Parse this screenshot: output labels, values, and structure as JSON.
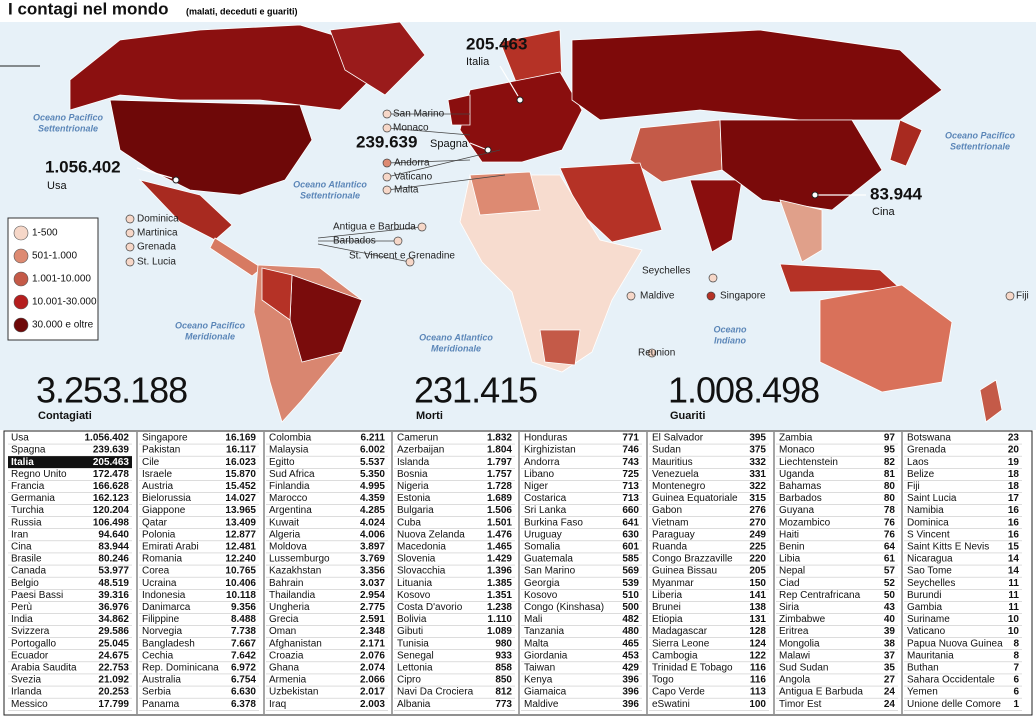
{
  "header": {
    "title": "I contagi nel mondo",
    "subtitle": "(malati, deceduti e guariti)"
  },
  "map": {
    "oceans": [
      [
        "Oceano Pacifico",
        "Settentrionale"
      ],
      [
        "Oceano Pacifico",
        "Settentrionale"
      ],
      [
        "Oceano Atlantico",
        "Settentrionale"
      ],
      [
        "Oceano Pacifico",
        "Meridionale"
      ],
      [
        "Oceano Atlantico",
        "Meridionale"
      ],
      [
        "Oceano",
        "Indiano"
      ]
    ],
    "callouts": [
      {
        "value": "1.056.402",
        "label": "Usa"
      },
      {
        "value": "239.639",
        "label": "Spagna"
      },
      {
        "value": "205.463",
        "label": "Italia"
      },
      {
        "value": "83.944",
        "label": "Cina"
      }
    ],
    "small_labels": [
      "San Marino",
      "Monaco",
      "Andorra",
      "Vaticano",
      "Malta",
      "Dominica",
      "Martinica",
      "Grenada",
      "St. Lucia",
      "Antigua e Barbuda",
      "Barbados",
      "St. Vincent e Grenadine",
      "Seychelles",
      "Maldive",
      "Singapore",
      "Reunion",
      "Fiji"
    ]
  },
  "legend": [
    "1-500",
    "501-1.000",
    "1.001-10.000",
    "10.001-30.000",
    "30.000 e oltre"
  ],
  "totals": [
    {
      "value": "3.253.188",
      "label": "Contagiati"
    },
    {
      "value": "231.415",
      "label": "Morti"
    },
    {
      "value": "1.008.498",
      "label": "Guariti"
    }
  ],
  "table": {
    "columns": [
      [
        [
          "Usa",
          "1.056.402"
        ],
        [
          "Spagna",
          "239.639"
        ],
        [
          "Italia",
          "205.463"
        ],
        [
          "Regno Unito",
          "172.478"
        ],
        [
          "Francia",
          "166.628"
        ],
        [
          "Germania",
          "162.123"
        ],
        [
          "Turchia",
          "120.204"
        ],
        [
          "Russia",
          "106.498"
        ],
        [
          "Iran",
          "94.640"
        ],
        [
          "Cina",
          "83.944"
        ],
        [
          "Brasile",
          "80.246"
        ],
        [
          "Canada",
          "53.977"
        ],
        [
          "Belgio",
          "48.519"
        ],
        [
          "Paesi Bassi",
          "39.316"
        ],
        [
          "Perù",
          "36.976"
        ],
        [
          "India",
          "34.862"
        ],
        [
          "Svizzera",
          "29.586"
        ],
        [
          "Portogallo",
          "25.045"
        ],
        [
          "Ecuador",
          "24.675"
        ],
        [
          "Arabia Saudita",
          "22.753"
        ],
        [
          "Svezia",
          "21.092"
        ],
        [
          "Irlanda",
          "20.253"
        ],
        [
          "Messico",
          "17.799"
        ]
      ],
      [
        [
          "Singapore",
          "16.169"
        ],
        [
          "Pakistan",
          "16.117"
        ],
        [
          "Cile",
          "16.023"
        ],
        [
          "Israele",
          "15.870"
        ],
        [
          "Austria",
          "15.452"
        ],
        [
          "Bielorussia",
          "14.027"
        ],
        [
          "Giappone",
          "13.965"
        ],
        [
          "Qatar",
          "13.409"
        ],
        [
          "Polonia",
          "12.877"
        ],
        [
          "Emirati Arabi",
          "12.481"
        ],
        [
          "Romania",
          "12.240"
        ],
        [
          "Corea",
          "10.765"
        ],
        [
          "Ucraina",
          "10.406"
        ],
        [
          "Indonesia",
          "10.118"
        ],
        [
          "Danimarca",
          "9.356"
        ],
        [
          "Filippine",
          "8.488"
        ],
        [
          "Norvegia",
          "7.738"
        ],
        [
          "Bangladesh",
          "7.667"
        ],
        [
          "Cechia",
          "7.642"
        ],
        [
          "Rep. Dominicana",
          "6.972"
        ],
        [
          "Australia",
          "6.754"
        ],
        [
          "Serbia",
          "6.630"
        ],
        [
          "Panama",
          "6.378"
        ]
      ],
      [
        [
          "Colombia",
          "6.211"
        ],
        [
          "Malaysia",
          "6.002"
        ],
        [
          "Egitto",
          "5.537"
        ],
        [
          "Sud Africa",
          "5.350"
        ],
        [
          "Finlandia",
          "4.995"
        ],
        [
          "Marocco",
          "4.359"
        ],
        [
          "Argentina",
          "4.285"
        ],
        [
          "Kuwait",
          "4.024"
        ],
        [
          "Algeria",
          "4.006"
        ],
        [
          "Moldova",
          "3.897"
        ],
        [
          "Lussemburgo",
          "3.769"
        ],
        [
          "Kazakhstan",
          "3.356"
        ],
        [
          "Bahrain",
          "3.037"
        ],
        [
          "Thailandia",
          "2.954"
        ],
        [
          "Ungheria",
          "2.775"
        ],
        [
          "Grecia",
          "2.591"
        ],
        [
          "Oman",
          "2.348"
        ],
        [
          "Afghanistan",
          "2.171"
        ],
        [
          "Croazia",
          "2.076"
        ],
        [
          "Ghana",
          "2.074"
        ],
        [
          "Armenia",
          "2.066"
        ],
        [
          "Uzbekistan",
          "2.017"
        ],
        [
          "Iraq",
          "2.003"
        ]
      ],
      [
        [
          "Camerun",
          "1.832"
        ],
        [
          "Azerbaijan",
          "1.804"
        ],
        [
          "Islanda",
          "1.797"
        ],
        [
          "Bosnia",
          "1.757"
        ],
        [
          "Nigeria",
          "1.728"
        ],
        [
          "Estonia",
          "1.689"
        ],
        [
          "Bulgaria",
          "1.506"
        ],
        [
          "Cuba",
          "1.501"
        ],
        [
          "Nuova Zelanda",
          "1.476"
        ],
        [
          "Macedonia",
          "1.465"
        ],
        [
          "Slovenia",
          "1.429"
        ],
        [
          "Slovacchia",
          "1.396"
        ],
        [
          "Lituania",
          "1.385"
        ],
        [
          "Kosovo",
          "1.351"
        ],
        [
          "Costa D'avorio",
          "1.238"
        ],
        [
          "Bolivia",
          "1.110"
        ],
        [
          "Gibuti",
          "1.089"
        ],
        [
          "Tunisia",
          "980"
        ],
        [
          "Senegal",
          "933"
        ],
        [
          "Lettonia",
          "858"
        ],
        [
          "Cipro",
          "850"
        ],
        [
          "Navi Da Crociera",
          "812"
        ],
        [
          "Albania",
          "773"
        ]
      ],
      [
        [
          "Honduras",
          "771"
        ],
        [
          "Kirghizistan",
          "746"
        ],
        [
          "Andorra",
          "743"
        ],
        [
          "Libano",
          "725"
        ],
        [
          "Niger",
          "713"
        ],
        [
          "Costarica",
          "713"
        ],
        [
          "Sri Lanka",
          "660"
        ],
        [
          "Burkina Faso",
          "641"
        ],
        [
          "Uruguay",
          "630"
        ],
        [
          "Somalia",
          "601"
        ],
        [
          "Guatemala",
          "585"
        ],
        [
          "San Marino",
          "569"
        ],
        [
          "Georgia",
          "539"
        ],
        [
          "Kosovo",
          "510"
        ],
        [
          "Congo (Kinshasa)",
          "500"
        ],
        [
          "Mali",
          "482"
        ],
        [
          "Tanzania",
          "480"
        ],
        [
          "Malta",
          "465"
        ],
        [
          "Giordania",
          "453"
        ],
        [
          "Taiwan",
          "429"
        ],
        [
          "Kenya",
          "396"
        ],
        [
          "Giamaica",
          "396"
        ],
        [
          "Maldive",
          "396"
        ]
      ],
      [
        [
          "El Salvador",
          "395"
        ],
        [
          "Sudan",
          "375"
        ],
        [
          "Mauritius",
          "332"
        ],
        [
          "Venezuela",
          "331"
        ],
        [
          "Montenegro",
          "322"
        ],
        [
          "Guinea Equatoriale",
          "315"
        ],
        [
          "Gabon",
          "276"
        ],
        [
          "Vietnam",
          "270"
        ],
        [
          "Paraguay",
          "249"
        ],
        [
          "Ruanda",
          "225"
        ],
        [
          "Congo Brazzaville",
          "220"
        ],
        [
          "Guinea Bissau",
          "205"
        ],
        [
          "Myanmar",
          "150"
        ],
        [
          "Liberia",
          "141"
        ],
        [
          "Brunei",
          "138"
        ],
        [
          "Etiopia",
          "131"
        ],
        [
          "Madagascar",
          "128"
        ],
        [
          "Sierra Leone",
          "124"
        ],
        [
          "Cambogia",
          "122"
        ],
        [
          "Trinidad E Tobago",
          "116"
        ],
        [
          "Togo",
          "116"
        ],
        [
          "Capo Verde",
          "113"
        ],
        [
          "eSwatini",
          "100"
        ]
      ],
      [
        [
          "Zambia",
          "97"
        ],
        [
          "Monaco",
          "95"
        ],
        [
          "Liechtenstein",
          "82"
        ],
        [
          "Uganda",
          "81"
        ],
        [
          "Bahamas",
          "80"
        ],
        [
          "Barbados",
          "80"
        ],
        [
          "Guyana",
          "78"
        ],
        [
          "Mozambico",
          "76"
        ],
        [
          "Haiti",
          "76"
        ],
        [
          "Benin",
          "64"
        ],
        [
          "Libia",
          "61"
        ],
        [
          "Nepal",
          "57"
        ],
        [
          "Ciad",
          "52"
        ],
        [
          "Rep Centrafricana",
          "50"
        ],
        [
          "Siria",
          "43"
        ],
        [
          "Zimbabwe",
          "40"
        ],
        [
          "Eritrea",
          "39"
        ],
        [
          "Mongolia",
          "38"
        ],
        [
          "Malawi",
          "37"
        ],
        [
          "Sud Sudan",
          "35"
        ],
        [
          "Angola",
          "27"
        ],
        [
          "Antigua E Barbuda",
          "24"
        ],
        [
          "Timor Est",
          "24"
        ]
      ],
      [
        [
          "Botswana",
          "23"
        ],
        [
          "Grenada",
          "20"
        ],
        [
          "Laos",
          "19"
        ],
        [
          "Belize",
          "18"
        ],
        [
          "Fiji",
          "18"
        ],
        [
          "Saint Lucia",
          "17"
        ],
        [
          "Namibia",
          "16"
        ],
        [
          "Dominica",
          "16"
        ],
        [
          "S Vincent",
          "16"
        ],
        [
          "Saint Kitts E Nevis",
          "15"
        ],
        [
          "Nicaragua",
          "14"
        ],
        [
          "Sao Tome",
          "14"
        ],
        [
          "Seychelles",
          "11"
        ],
        [
          "Burundi",
          "11"
        ],
        [
          "Gambia",
          "11"
        ],
        [
          "Suriname",
          "10"
        ],
        [
          "Vaticano",
          "10"
        ],
        [
          "Papua Nuova Guinea",
          "8"
        ],
        [
          "Mauritania",
          "8"
        ],
        [
          "Buthan",
          "7"
        ],
        [
          "Sahara Occidentale",
          "6"
        ],
        [
          "Yemen",
          "6"
        ],
        [
          "Unione delle Comore",
          "1"
        ]
      ]
    ]
  }
}
